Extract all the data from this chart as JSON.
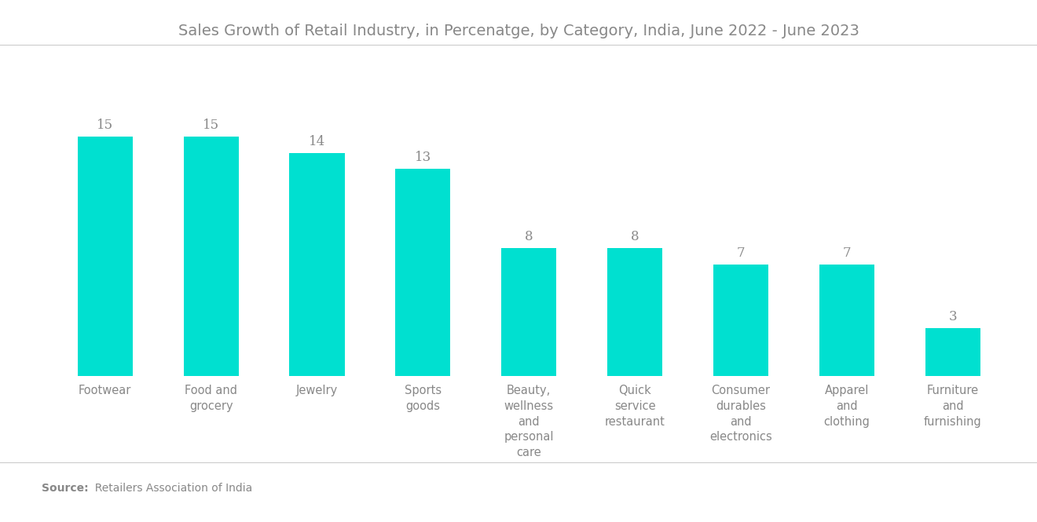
{
  "title": "Sales Growth of Retail Industry, in Percenatge, by Category, India, June 2022 - June 2023",
  "categories": [
    "Footwear",
    "Food and\ngrocery",
    "Jewelry",
    "Sports\ngoods",
    "Beauty,\nwellness\nand\npersonal\ncare",
    "Quick\nservice\nrestaurant",
    "Consumer\ndurables\nand\nelectronics",
    "Apparel\nand\nclothing",
    "Furniture\nand\nfurnishing"
  ],
  "values": [
    15,
    15,
    14,
    13,
    8,
    8,
    7,
    7,
    3
  ],
  "bar_color": "#00E0D0",
  "title_color": "#888888",
  "label_color": "#888888",
  "value_color": "#888888",
  "source_bold": "Source:",
  "source_normal": "  Retailers Association of India",
  "background_color": "#ffffff",
  "ylim": [
    0,
    19
  ],
  "title_fontsize": 14,
  "label_fontsize": 10.5,
  "value_fontsize": 12,
  "source_fontsize": 10,
  "bar_width": 0.52
}
